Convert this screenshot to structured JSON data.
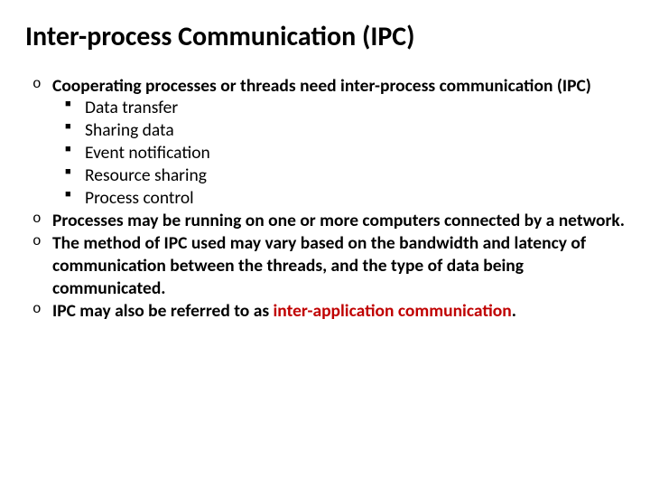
{
  "slide": {
    "title": "Inter-process Communication (IPC)",
    "background_color": "#ffffff",
    "title_color": "#000000",
    "title_fontsize": 30,
    "title_fontweight": 700,
    "body_fontsize": 19.5,
    "body_color": "#000000",
    "accent_color": "#c00000",
    "bullets": [
      {
        "text": "Cooperating processes or threads need inter-process communication (IPC)",
        "sub": [
          "Data transfer",
          "Sharing data",
          "Event notification",
          "Resource sharing",
          "Process control"
        ]
      },
      {
        "text": "Processes may be running on one or more computers connected by a network."
      },
      {
        "text": "The method of IPC used may vary based on the bandwidth and latency of communication between the threads, and the type of data being communicated."
      },
      {
        "text_prefix": "IPC may also be referred to as ",
        "accent_text": "inter-application communication",
        "text_suffix": "."
      }
    ],
    "level1_marker": "o",
    "level2_marker": "■"
  }
}
